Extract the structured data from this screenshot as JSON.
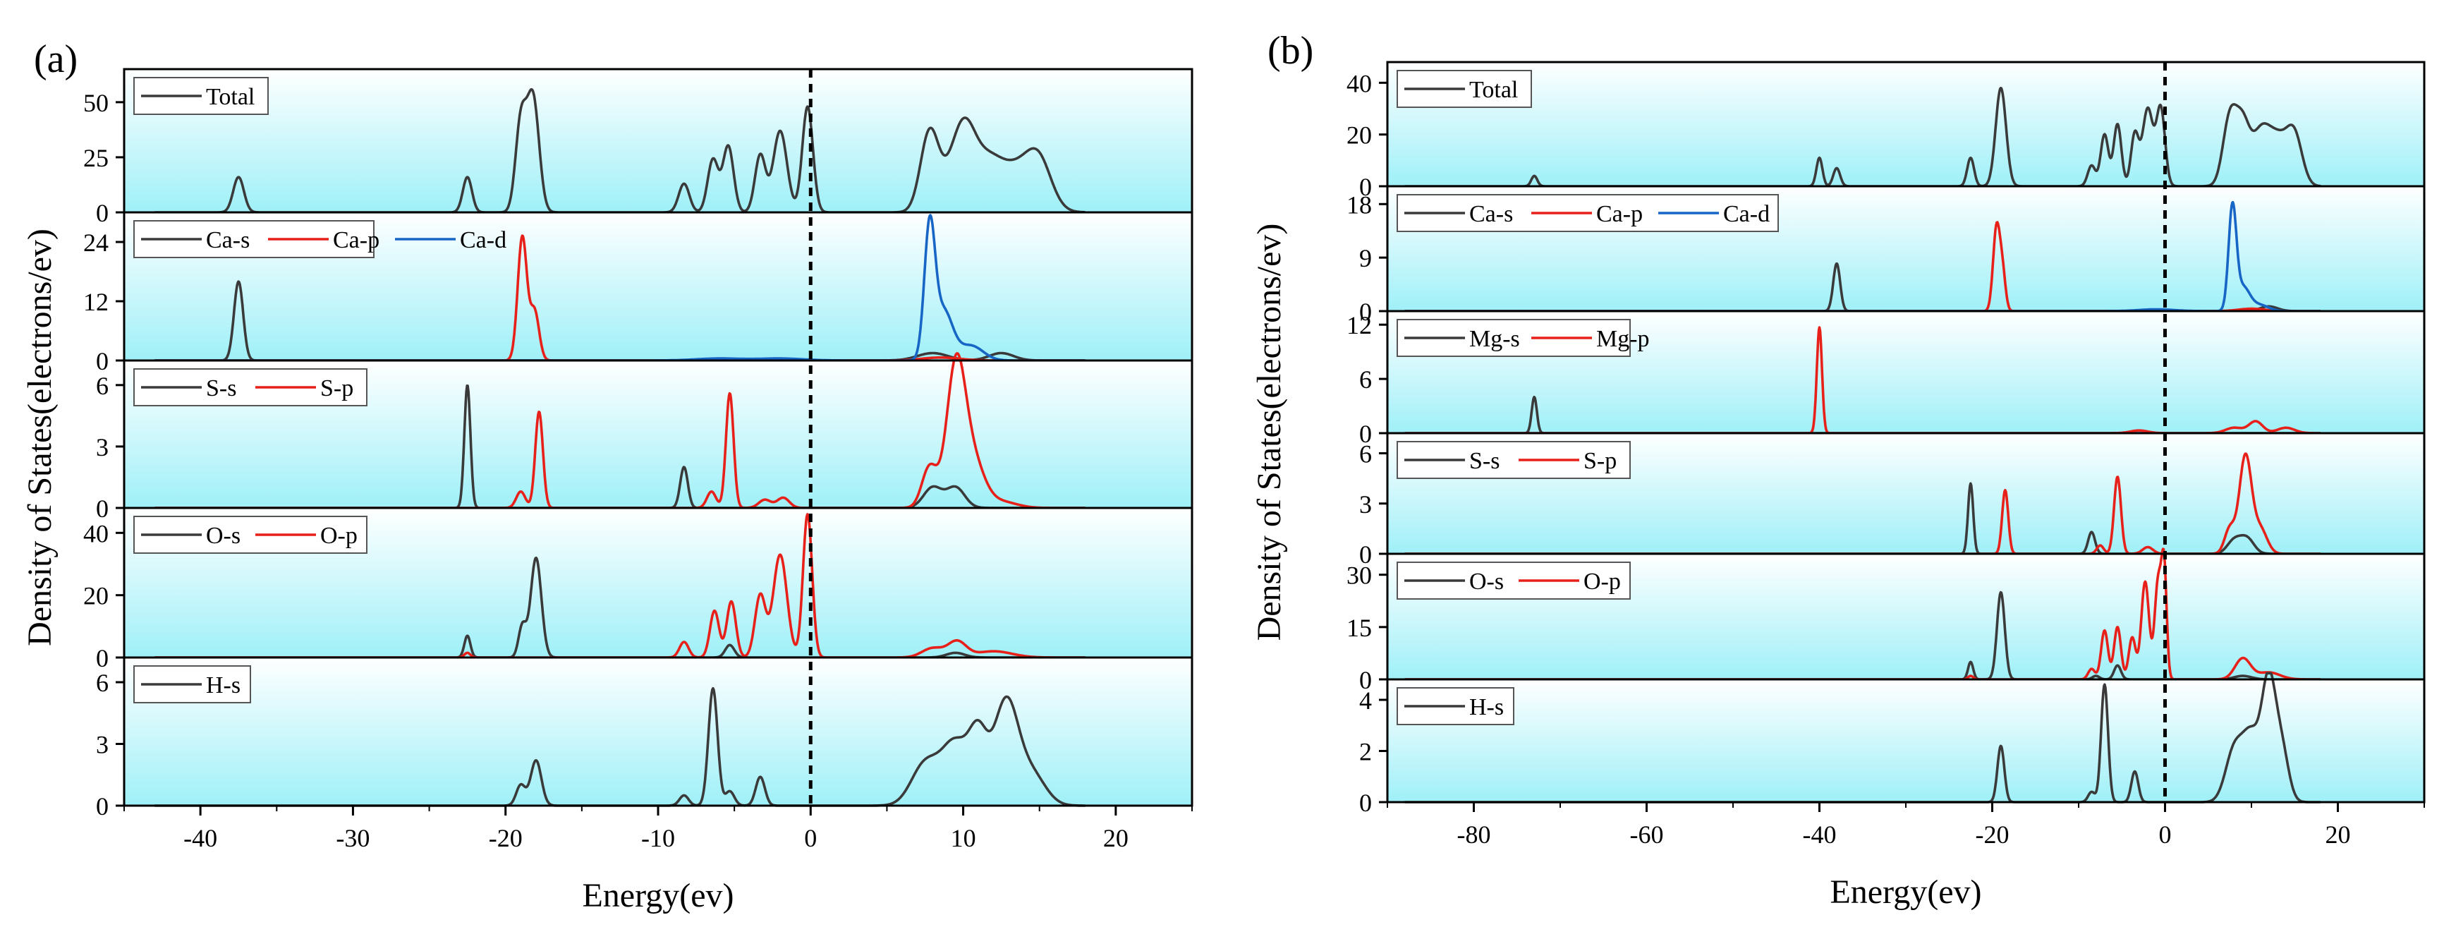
{
  "chart_data": [
    {
      "type": "line",
      "label": "(a)",
      "xlabel": "Energy(ev)",
      "ylabel": "Density of States(electrons/ev)",
      "xlim": [
        -45,
        25
      ],
      "xticks": [
        -40,
        -30,
        -20,
        -10,
        0,
        10,
        20
      ],
      "fermi_level": 0,
      "panels": [
        {
          "name": "total",
          "ylim": [
            0,
            65
          ],
          "yticks": [
            0,
            25,
            50
          ],
          "series": [
            {
              "name": "Total",
              "color": "#3a3a3a",
              "peaks": [
                [
                  -37.5,
                  16,
                  0.35
                ],
                [
                  -22.5,
                  16,
                  0.3
                ],
                [
                  -19,
                  40,
                  0.35
                ],
                [
                  -18.2,
                  52,
                  0.4
                ],
                [
                  -8.3,
                  13,
                  0.35
                ],
                [
                  -6.4,
                  24,
                  0.35
                ],
                [
                  -5.4,
                  30,
                  0.35
                ],
                [
                  -3.3,
                  26,
                  0.35
                ],
                [
                  -2,
                  37,
                  0.45
                ],
                [
                  -0.2,
                  48,
                  0.35
                ],
                [
                  7.8,
                  36,
                  0.6
                ],
                [
                  9.5,
                  20,
                  0.8
                ],
                [
                  10.2,
                  22,
                  0.7
                ],
                [
                  11.5,
                  18,
                  0.9
                ],
                [
                  13.5,
                  20,
                  1.3
                ],
                [
                  15,
                  17,
                  0.8
                ]
              ]
            }
          ]
        },
        {
          "name": "Ca",
          "ylim": [
            0,
            30
          ],
          "yticks": [
            0,
            12,
            24
          ],
          "series": [
            {
              "name": "Ca-s",
              "color": "#3a3a3a",
              "peaks": [
                [
                  -37.5,
                  16,
                  0.3
                ],
                [
                  8,
                  1.5,
                  1
                ],
                [
                  12.5,
                  1.5,
                  0.8
                ]
              ]
            },
            {
              "name": "Ca-p",
              "color": "#e8201a",
              "peaks": [
                [
                  -18.9,
                  25,
                  0.3
                ],
                [
                  -18.1,
                  10,
                  0.3
                ],
                [
                  8.5,
                  0.6,
                  1.2
                ]
              ]
            },
            {
              "name": "Ca-d",
              "color": "#1766c6",
              "peaks": [
                [
                  -6,
                  0.4,
                  1.5
                ],
                [
                  -2,
                  0.4,
                  1.5
                ],
                [
                  7.8,
                  26,
                  0.35
                ],
                [
                  8.7,
                  10,
                  0.6
                ],
                [
                  10.5,
                  3,
                  0.8
                ]
              ]
            }
          ]
        },
        {
          "name": "S",
          "ylim": [
            0,
            7.2
          ],
          "yticks": [
            0,
            3,
            6
          ],
          "series": [
            {
              "name": "S-s",
              "color": "#3a3a3a",
              "peaks": [
                [
                  -22.5,
                  6,
                  0.2
                ],
                [
                  -8.3,
                  2,
                  0.25
                ],
                [
                  8,
                  1,
                  0.6
                ],
                [
                  9.5,
                  1,
                  0.6
                ]
              ]
            },
            {
              "name": "S-p",
              "color": "#e8201a",
              "peaks": [
                [
                  -19,
                  0.8,
                  0.3
                ],
                [
                  -17.8,
                  4.7,
                  0.25
                ],
                [
                  -6.5,
                  0.8,
                  0.3
                ],
                [
                  -5.3,
                  5.6,
                  0.25
                ],
                [
                  -3,
                  0.4,
                  0.4
                ],
                [
                  -1.8,
                  0.5,
                  0.4
                ],
                [
                  7.8,
                  2,
                  0.5
                ],
                [
                  9.5,
                  6.3,
                  0.6
                ],
                [
                  10.5,
                  2.5,
                  0.8
                ],
                [
                  12.5,
                  0.3,
                  1
                ]
              ]
            }
          ]
        },
        {
          "name": "O",
          "ylim": [
            0,
            48
          ],
          "yticks": [
            0,
            20,
            40
          ],
          "series": [
            {
              "name": "O-s",
              "color": "#3a3a3a",
              "peaks": [
                [
                  -22.5,
                  7,
                  0.2
                ],
                [
                  -18.9,
                  10,
                  0.25
                ],
                [
                  -18,
                  32,
                  0.35
                ],
                [
                  -5.3,
                  4,
                  0.3
                ],
                [
                  9.5,
                  1.5,
                  0.6
                ]
              ]
            },
            {
              "name": "O-p",
              "color": "#e8201a",
              "peaks": [
                [
                  -22.5,
                  1.5,
                  0.2
                ],
                [
                  -8.3,
                  5,
                  0.3
                ],
                [
                  -6.3,
                  15,
                  0.3
                ],
                [
                  -5.2,
                  18,
                  0.3
                ],
                [
                  -3.3,
                  20,
                  0.35
                ],
                [
                  -2,
                  33,
                  0.45
                ],
                [
                  -0.2,
                  46,
                  0.3
                ],
                [
                  8,
                  3,
                  0.7
                ],
                [
                  9.6,
                  5,
                  0.6
                ],
                [
                  12,
                  2,
                  1.2
                ]
              ]
            }
          ]
        },
        {
          "name": "H",
          "ylim": [
            0,
            7.2
          ],
          "yticks": [
            0,
            3,
            6
          ],
          "series": [
            {
              "name": "H-s",
              "color": "#3a3a3a",
              "peaks": [
                [
                  -19,
                  1,
                  0.3
                ],
                [
                  -18,
                  2.2,
                  0.35
                ],
                [
                  -8.3,
                  0.5,
                  0.3
                ],
                [
                  -6.4,
                  5.7,
                  0.3
                ],
                [
                  -5.3,
                  0.7,
                  0.3
                ],
                [
                  -3.3,
                  1.4,
                  0.3
                ],
                [
                  7.5,
                  2,
                  0.9
                ],
                [
                  9.5,
                  3,
                  0.9
                ],
                [
                  11,
                  3,
                  0.6
                ],
                [
                  12.8,
                  5,
                  0.8
                ],
                [
                  14.5,
                  1.5,
                  0.9
                ]
              ]
            }
          ]
        }
      ]
    },
    {
      "type": "line",
      "label": "(b)",
      "xlabel": "Energy(ev)",
      "ylabel": "Density of States(electrons/ev)",
      "xlim": [
        -90,
        30
      ],
      "xticks": [
        -80,
        -60,
        -40,
        -20,
        0,
        20
      ],
      "fermi_level": 0,
      "panels": [
        {
          "name": "total",
          "ylim": [
            0,
            48
          ],
          "yticks": [
            0,
            20,
            40
          ],
          "series": [
            {
              "name": "Total",
              "color": "#3a3a3a",
              "peaks": [
                [
                  -73,
                  4,
                  0.35
                ],
                [
                  -40,
                  11,
                  0.35
                ],
                [
                  -38,
                  7,
                  0.4
                ],
                [
                  -22.5,
                  11,
                  0.4
                ],
                [
                  -19,
                  38,
                  0.6
                ],
                [
                  -8.5,
                  8,
                  0.45
                ],
                [
                  -7,
                  20,
                  0.45
                ],
                [
                  -5.5,
                  24,
                  0.45
                ],
                [
                  -3.5,
                  20,
                  0.45
                ],
                [
                  -2,
                  30,
                  0.6
                ],
                [
                  -0.5,
                  30,
                  0.5
                ],
                [
                  7.5,
                  26,
                  0.8
                ],
                [
                  9,
                  22,
                  0.8
                ],
                [
                  11,
                  18,
                  1
                ],
                [
                  13,
                  18,
                  1.2
                ],
                [
                  15,
                  18,
                  0.9
                ]
              ]
            }
          ]
        },
        {
          "name": "Ca",
          "ylim": [
            0,
            21
          ],
          "yticks": [
            0,
            9,
            18
          ],
          "series": [
            {
              "name": "Ca-s",
              "color": "#3a3a3a",
              "peaks": [
                [
                  -38,
                  8,
                  0.4
                ],
                [
                  12,
                  0.8,
                  1
                ]
              ]
            },
            {
              "name": "Ca-p",
              "color": "#e8201a",
              "peaks": [
                [
                  -19.5,
                  14,
                  0.4
                ],
                [
                  -18.8,
                  6,
                  0.35
                ],
                [
                  10,
                  0.4,
                  1.5
                ]
              ]
            },
            {
              "name": "Ca-d",
              "color": "#1766c6",
              "peaks": [
                [
                  -1,
                  0.3,
                  2
                ],
                [
                  7.8,
                  17,
                  0.45
                ],
                [
                  9,
                  4,
                  0.8
                ],
                [
                  11,
                  1,
                  1
                ]
              ]
            }
          ]
        },
        {
          "name": "Mg",
          "ylim": [
            0,
            13.5
          ],
          "yticks": [
            0,
            6,
            12
          ],
          "series": [
            {
              "name": "Mg-s",
              "color": "#3a3a3a",
              "peaks": [
                [
                  -73,
                  4,
                  0.3
                ]
              ]
            },
            {
              "name": "Mg-p",
              "color": "#e8201a",
              "peaks": [
                [
                  -40,
                  11.7,
                  0.3
                ],
                [
                  -3,
                  0.3,
                  1
                ],
                [
                  8,
                  0.6,
                  1
                ],
                [
                  10.5,
                  1.3,
                  0.8
                ],
                [
                  14,
                  0.6,
                  1
                ]
              ]
            }
          ]
        },
        {
          "name": "S",
          "ylim": [
            0,
            7.2
          ],
          "yticks": [
            0,
            3,
            6
          ],
          "series": [
            {
              "name": "S-s",
              "color": "#3a3a3a",
              "peaks": [
                [
                  -22.5,
                  4.2,
                  0.3
                ],
                [
                  -8.5,
                  1.3,
                  0.4
                ],
                [
                  8,
                  0.8,
                  0.8
                ],
                [
                  9.5,
                  0.9,
                  0.8
                ]
              ]
            },
            {
              "name": "S-p",
              "color": "#e8201a",
              "peaks": [
                [
                  -18.5,
                  3.8,
                  0.35
                ],
                [
                  -7.5,
                  0.5,
                  0.4
                ],
                [
                  -5.5,
                  4.6,
                  0.4
                ],
                [
                  -2,
                  0.4,
                  0.6
                ],
                [
                  7.5,
                  1.5,
                  0.6
                ],
                [
                  9.3,
                  5.8,
                  0.7
                ],
                [
                  11,
                  1.5,
                  0.8
                ]
              ]
            }
          ]
        },
        {
          "name": "O",
          "ylim": [
            0,
            36
          ],
          "yticks": [
            0,
            15,
            30
          ],
          "series": [
            {
              "name": "O-s",
              "color": "#3a3a3a",
              "peaks": [
                [
                  -22.5,
                  5,
                  0.3
                ],
                [
                  -19,
                  25,
                  0.45
                ],
                [
                  -8,
                  1,
                  0.4
                ],
                [
                  -5.5,
                  4,
                  0.4
                ],
                [
                  9,
                  1,
                  1
                ]
              ]
            },
            {
              "name": "O-p",
              "color": "#e8201a",
              "peaks": [
                [
                  -22.5,
                  1,
                  0.3
                ],
                [
                  -8.5,
                  3,
                  0.4
                ],
                [
                  -7,
                  14,
                  0.4
                ],
                [
                  -5.5,
                  15,
                  0.4
                ],
                [
                  -3.8,
                  12,
                  0.4
                ],
                [
                  -2.3,
                  28,
                  0.45
                ],
                [
                  -0.8,
                  28,
                  0.4
                ],
                [
                  -0.1,
                  30,
                  0.3
                ],
                [
                  9,
                  6,
                  0.9
                ],
                [
                  12,
                  2,
                  1.3
                ]
              ]
            }
          ]
        },
        {
          "name": "H",
          "ylim": [
            0,
            4.8
          ],
          "yticks": [
            0,
            2,
            4
          ],
          "series": [
            {
              "name": "H-s",
              "color": "#3a3a3a",
              "peaks": [
                [
                  -19,
                  2.2,
                  0.4
                ],
                [
                  -8.5,
                  0.4,
                  0.4
                ],
                [
                  -7,
                  4.6,
                  0.4
                ],
                [
                  -3.5,
                  1.2,
                  0.4
                ],
                [
                  8,
                  2,
                  1
                ],
                [
                  10,
                  2.5,
                  1
                ],
                [
                  12,
                  4.5,
                  0.8
                ],
                [
                  13.5,
                  2,
                  0.8
                ]
              ]
            }
          ]
        }
      ]
    }
  ]
}
